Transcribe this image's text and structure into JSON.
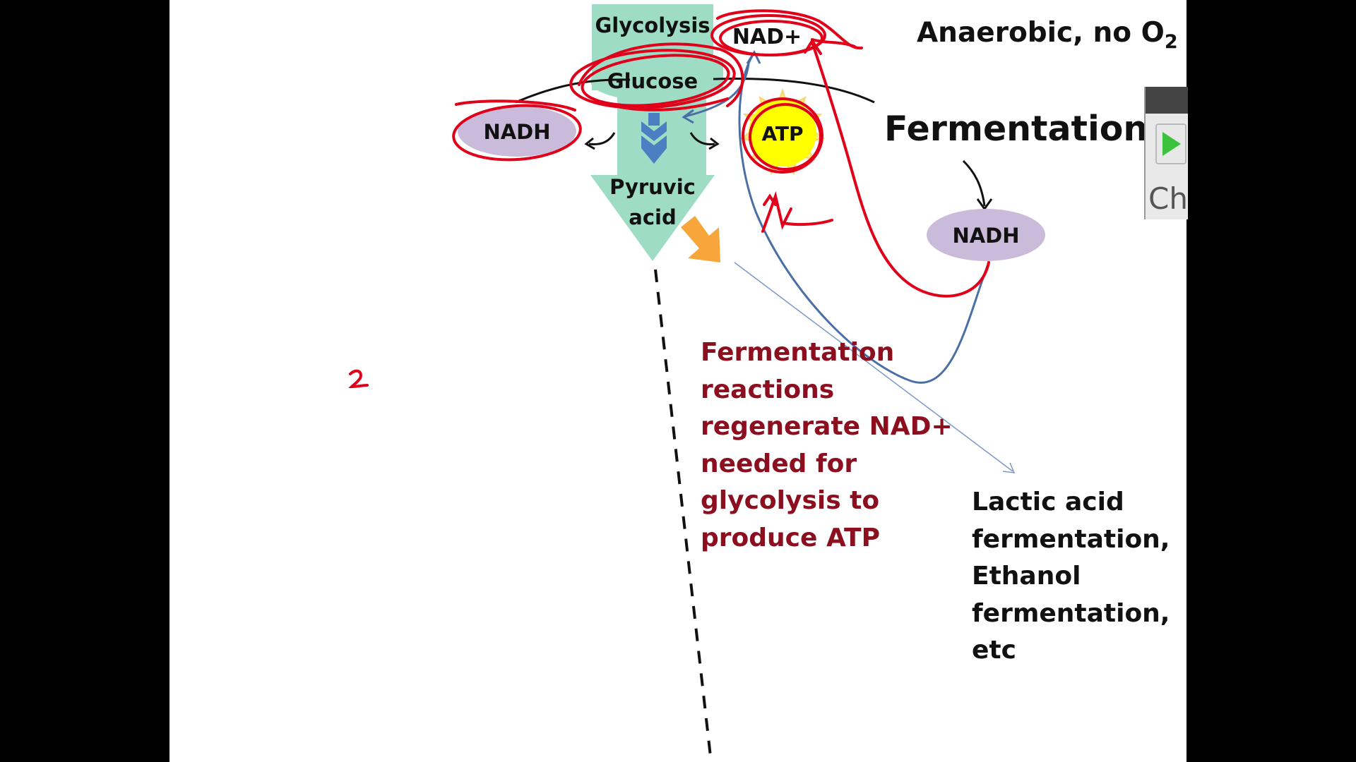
{
  "diagram": {
    "labels": {
      "glycolysis": "Glycolysis",
      "glucose": "Glucose",
      "nad_plus": "NAD+",
      "nadh_left": "NADH",
      "atp": "ATP",
      "pyruvic_line1": "Pyruvic",
      "pyruvic_line2": "acid",
      "nadh_right": "NADH"
    },
    "anaerobic_title": "Anaerobic, no O",
    "anaerobic_subscript": "2",
    "fermentation_title": "Fermentation",
    "note_lines": [
      "Fermentation",
      "reactions",
      "regenerate NAD+",
      "needed for",
      "glycolysis to",
      "produce ATP"
    ],
    "fermentation_types": [
      "Lactic acid",
      "fermentation,",
      "Ethanol",
      "fermentation,",
      "etc"
    ],
    "handwritten_mark": "2"
  },
  "colors": {
    "flow_green": "#9fdcc6",
    "nadh_purple": "#c9bbd9",
    "atp_yellow": "#ffff00",
    "note_red": "#8b0f1f",
    "annotation_red": "#e0001a",
    "arrow_blue": "#4a6fa5",
    "arrow_orange": "#f7a63c"
  },
  "player": {
    "icon": "play-icon",
    "text": "Ch"
  }
}
